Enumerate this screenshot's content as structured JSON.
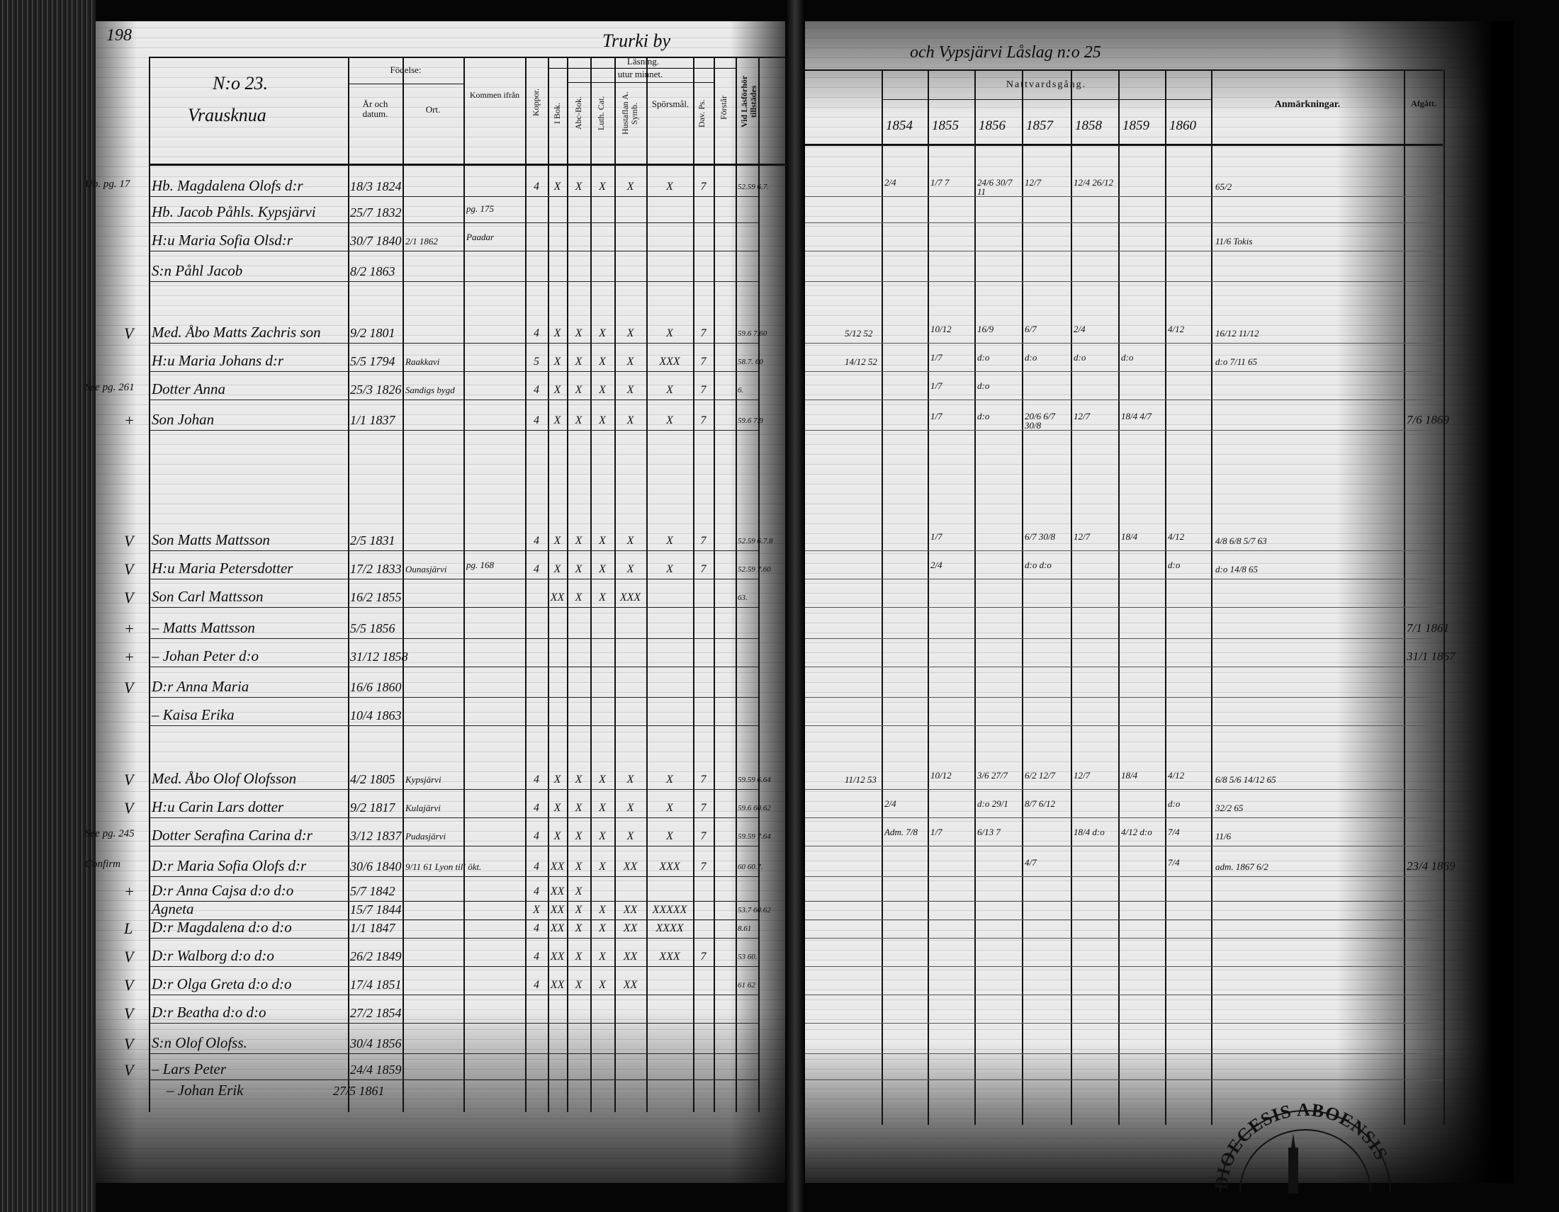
{
  "left_page": {
    "page_number": "198",
    "village": "Trurki by",
    "household_no": "N:o 23.",
    "household_name": "Vrausknua",
    "columns": {
      "birth": "Födelse:",
      "birth_date": "År och datum.",
      "birth_place": "Ort.",
      "came_from": "Kommen ifrån",
      "koppor": "Koppor.",
      "reading": "Läsning.",
      "by_heart": "utur minnet.",
      "i_bok": "I Bok.",
      "abc": "Abc-Bok.",
      "luth": "Luth. Cat.",
      "hustaflan": "Hustaflan A. Symb.",
      "sporsmal": "Spörsmål.",
      "dav_ps": "Dav. Ps.",
      "forstar": "Förstår",
      "lasforhor": "Vid Läsförhör tillstädes"
    }
  },
  "right_page": {
    "heading": "och Vypsjärvi Låslag n:o 25",
    "communion": "Nattvardsgång.",
    "years": [
      "1854",
      "1855",
      "1856",
      "1857",
      "1858",
      "1859",
      "1860"
    ],
    "remarks": "Anmärkningar.",
    "departed": "Afgått."
  },
  "rows": [
    {
      "margin": "Ub. pg. 17",
      "name": "Hb. Magdalena Olofs d:r",
      "date": "18/3 1824",
      "place": "",
      "from": "",
      "marks": [
        "4",
        "X",
        "X",
        "X",
        "X",
        "X",
        "7"
      ],
      "las": "52.59 6.7.",
      "comm": [
        "2/4",
        "1/7 7",
        "24/6 30/7 11",
        "12/7",
        "12/4 26/12",
        "",
        ""
      ],
      "pre": "",
      "remarks": "65/2",
      "departed": ""
    },
    {
      "margin": "",
      "name": "Hb. Jacob Påhls. Kypsjärvi",
      "date": "25/7 1832",
      "place": "",
      "from": "pg. 175",
      "marks": [],
      "las": "",
      "comm": [],
      "pre": "",
      "remarks": "",
      "departed": ""
    },
    {
      "margin": "",
      "name": "H:u Maria Sofia Olsd:r",
      "date": "30/7 1840",
      "place": "2/1 1862",
      "from": "Paadar",
      "marks": [],
      "las": "",
      "comm": [],
      "pre": "",
      "remarks": "11/6 Tokis",
      "departed": ""
    },
    {
      "margin": "",
      "name": "S:n Påhl Jacob",
      "date": "8/2 1863",
      "place": "",
      "from": "",
      "marks": [],
      "las": "",
      "comm": [],
      "pre": "",
      "remarks": "",
      "departed": ""
    },
    {
      "margin": "V",
      "name": "Med. Åbo Matts Zachris son",
      "date": "9/2 1801",
      "place": "",
      "from": "",
      "marks": [
        "4",
        "X",
        "X",
        "X",
        "X",
        "X",
        "7"
      ],
      "las": "59.6 7.60",
      "comm": [
        "",
        "10/12",
        "16/9",
        "6/7",
        "2/4",
        "",
        "4/12"
      ],
      "pre": "5/12 52",
      "remarks": "16/12 11/12",
      "departed": ""
    },
    {
      "margin": "",
      "name": "H:u Maria Johans d:r",
      "date": "5/5 1794",
      "place": "Raakkavi",
      "from": "",
      "marks": [
        "5",
        "X",
        "X",
        "X",
        "X",
        "XXX",
        "7"
      ],
      "las": "58.7. 60",
      "comm": [
        "",
        "1/7",
        "d:o",
        "d:o",
        "d:o",
        "d:o",
        ""
      ],
      "pre": "14/12 52",
      "remarks": "d:o 7/11 65",
      "departed": ""
    },
    {
      "margin": "See pg. 261",
      "name": "Dotter Anna",
      "date": "25/3 1826",
      "place": "Sandigs bygd",
      "from": "",
      "marks": [
        "4",
        "X",
        "X",
        "X",
        "X",
        "X",
        "7"
      ],
      "las": "6.",
      "comm": [
        "",
        "1/7",
        "d:o",
        "",
        "",
        "",
        ""
      ],
      "pre": "",
      "remarks": "",
      "departed": ""
    },
    {
      "margin": "+",
      "name": "Son Johan",
      "date": "1/1 1837",
      "place": "",
      "from": "",
      "marks": [
        "4",
        "X",
        "X",
        "X",
        "X",
        "X",
        "7"
      ],
      "las": "59.6 7.9",
      "comm": [
        "",
        "1/7",
        "d:o",
        "20/6 6/7 30/8",
        "12/7",
        "18/4 4/7",
        ""
      ],
      "pre": "",
      "remarks": "",
      "departed": "7/6 1869"
    },
    {
      "margin": "V",
      "name": "Son Matts Mattsson",
      "date": "2/5 1831",
      "place": "",
      "from": "",
      "marks": [
        "4",
        "X",
        "X",
        "X",
        "X",
        "X",
        "7"
      ],
      "las": "52.59 6.7.8",
      "comm": [
        "",
        "1/7",
        "",
        "6/7 30/8",
        "12/7",
        "18/4",
        "4/12"
      ],
      "pre": "",
      "remarks": "4/8 6/8 5/7 63",
      "departed": ""
    },
    {
      "margin": "V",
      "name": "H:u Maria Petersdotter",
      "date": "17/2 1833",
      "place": "Ounasjärvi",
      "from": "pg. 168",
      "marks": [
        "4",
        "X",
        "X",
        "X",
        "X",
        "X",
        "7"
      ],
      "las": "52.59 7.60",
      "comm": [
        "",
        "2/4",
        "",
        "d:o d:o",
        "",
        "",
        "d:o"
      ],
      "pre": "",
      "remarks": "d:o 14/8 65",
      "departed": ""
    },
    {
      "margin": "V",
      "name": "Son Carl Mattsson",
      "date": "16/2 1855",
      "place": "",
      "from": "",
      "marks": [
        "",
        "XX",
        "X",
        "X",
        "XXX",
        "",
        ""
      ],
      "las": "63.",
      "comm": [],
      "pre": "",
      "remarks": "",
      "departed": ""
    },
    {
      "margin": "+",
      "name": "– Matts Mattsson",
      "date": "5/5 1856",
      "place": "",
      "from": "",
      "marks": [],
      "las": "",
      "comm": [],
      "pre": "",
      "remarks": "",
      "departed": "7/1 1861"
    },
    {
      "margin": "+",
      "name": "– Johan Peter d:o",
      "date": "31/12 1858",
      "place": "",
      "from": "",
      "marks": [],
      "las": "",
      "comm": [],
      "pre": "",
      "remarks": "",
      "departed": "31/1 1867"
    },
    {
      "margin": "V",
      "name": "D:r Anna Maria",
      "date": "16/6 1860",
      "place": "",
      "from": "",
      "marks": [],
      "las": "",
      "comm": [],
      "pre": "",
      "remarks": "",
      "departed": ""
    },
    {
      "margin": "",
      "name": "– Kaisa Erika",
      "date": "10/4 1863",
      "place": "",
      "from": "",
      "marks": [],
      "las": "",
      "comm": [],
      "pre": "",
      "remarks": "",
      "departed": ""
    },
    {
      "margin": "V",
      "name": "Med. Åbo Olof Olofsson",
      "date": "4/2 1805",
      "place": "Kypsjärvi",
      "from": "",
      "marks": [
        "4",
        "X",
        "X",
        "X",
        "X",
        "X",
        "7"
      ],
      "las": "59.59 6.64",
      "comm": [
        "",
        "10/12",
        "3/6 27/7",
        "6/2 12/7",
        "12/7",
        "18/4",
        "4/12"
      ],
      "pre": "11/12 53",
      "remarks": "6/8 5/6 14/12 65",
      "departed": ""
    },
    {
      "margin": "V",
      "name": "H:u Carin Lars dotter",
      "date": "9/2 1817",
      "place": "Kulajärvi",
      "from": "",
      "marks": [
        "4",
        "X",
        "X",
        "X",
        "X",
        "X",
        "7"
      ],
      "las": "59.6 60.62",
      "comm": [
        "2/4",
        "",
        "d:o 29/1",
        "8/7 6/12",
        "",
        "",
        "d:o"
      ],
      "pre": "",
      "remarks": "32/2 65",
      "departed": ""
    },
    {
      "margin": "See pg. 245",
      "name": "Dotter Serafina Carina d:r",
      "date": "3/12 1837",
      "place": "Pudasjärvi",
      "from": "",
      "marks": [
        "4",
        "X",
        "X",
        "X",
        "X",
        "X",
        "7"
      ],
      "las": "59.59 7.64",
      "comm": [
        "Adm. 7/8",
        "1/7",
        "6/13 7",
        "",
        "18/4 d:o",
        "4/12 d:o",
        "7/4"
      ],
      "pre": "",
      "remarks": "11/6",
      "departed": ""
    },
    {
      "margin": "Confirm",
      "name": "D:r Maria Sofia Olofs d:r",
      "date": "30/6 1840",
      "place": "9/11 61 Lyon till ökt.",
      "from": "",
      "marks": [
        "4",
        "XX",
        "X",
        "X",
        "XX",
        "XXX",
        "7"
      ],
      "las": "60 60.7.",
      "comm": [
        "",
        "",
        "",
        "4/7",
        "",
        "",
        "7/4"
      ],
      "pre": "",
      "remarks": "adm. 1867 6/2",
      "departed": "23/4 1869"
    },
    {
      "margin": "+",
      "name": "D:r Anna Cajsa d:o d:o",
      "date": "5/7 1842",
      "place": "",
      "from": "",
      "marks": [
        "4",
        "XX",
        "X",
        "",
        "",
        "",
        ""
      ],
      "las": "",
      "comm": [],
      "pre": "",
      "remarks": "",
      "departed": ""
    },
    {
      "margin": "",
      "name": "Agneta",
      "date": "15/7 1844",
      "place": "",
      "from": "",
      "marks": [
        "X",
        "XX",
        "X",
        "X",
        "XX",
        "XXXXX",
        ""
      ],
      "las": "53.7 60.62",
      "comm": [],
      "pre": "",
      "remarks": "",
      "departed": ""
    },
    {
      "margin": "L",
      "name": "D:r Magdalena d:o d:o",
      "date": "1/1 1847",
      "place": "",
      "from": "",
      "marks": [
        "4",
        "XX",
        "X",
        "X",
        "XX",
        "XXXX",
        ""
      ],
      "las": "8.61",
      "comm": [],
      "pre": "",
      "remarks": "",
      "departed": ""
    },
    {
      "margin": "V",
      "name": "D:r Walborg d:o d:o",
      "date": "26/2 1849",
      "place": "",
      "from": "",
      "marks": [
        "4",
        "XX",
        "X",
        "X",
        "XX",
        "XXX",
        "7"
      ],
      "las": "53 60.",
      "comm": [],
      "pre": "",
      "remarks": "",
      "departed": ""
    },
    {
      "margin": "V",
      "name": "D:r Olga Greta d:o d:o",
      "date": "17/4 1851",
      "place": "",
      "from": "",
      "marks": [
        "4",
        "XX",
        "X",
        "X",
        "XX",
        "",
        ""
      ],
      "las": "61 62",
      "comm": [],
      "pre": "",
      "remarks": "",
      "departed": ""
    },
    {
      "margin": "V",
      "name": "D:r Beatha d:o d:o",
      "date": "27/2 1854",
      "place": "",
      "from": "",
      "marks": [],
      "las": "",
      "comm": [],
      "pre": "",
      "remarks": "",
      "departed": ""
    },
    {
      "margin": "V",
      "name": "S:n Olof Olofss.",
      "date": "30/4 1856",
      "place": "",
      "from": "",
      "marks": [],
      "las": "",
      "comm": [],
      "pre": "",
      "remarks": "",
      "departed": ""
    },
    {
      "margin": "V",
      "name": "– Lars Peter",
      "date": "24/4 1859",
      "place": "",
      "from": "",
      "marks": [],
      "las": "",
      "comm": [],
      "pre": "",
      "remarks": "",
      "departed": ""
    },
    {
      "margin": "",
      "name": "– Johan Erik",
      "date": "27/5 1861",
      "place": "",
      "from": "",
      "marks": [],
      "las": "",
      "comm": [],
      "pre": "",
      "remarks": "",
      "departed": ""
    }
  ],
  "stamp": {
    "text": "DIOECESIS ABOENSIS"
  }
}
